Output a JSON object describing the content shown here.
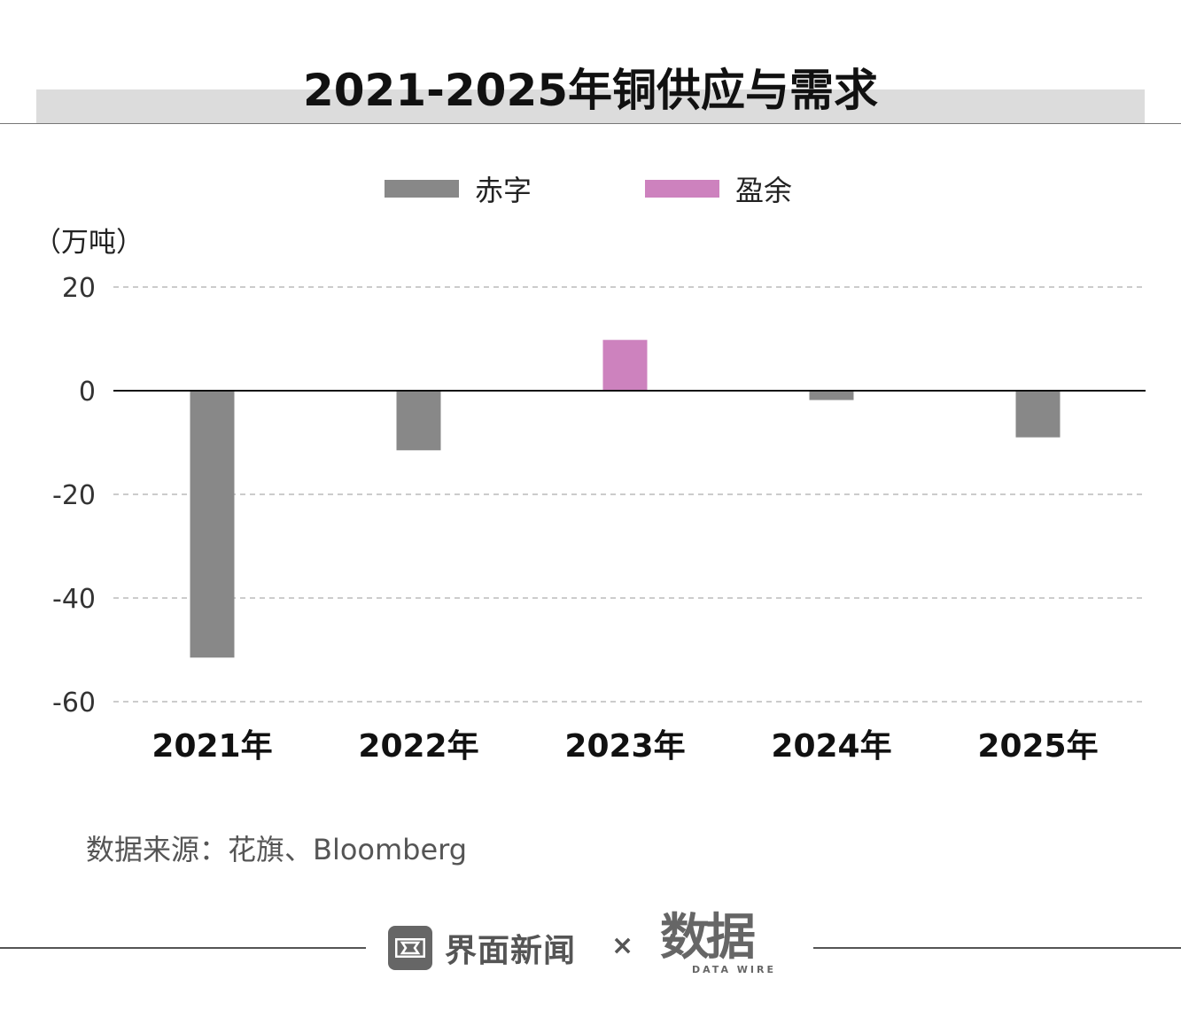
{
  "title": "2021-2025年铜供应与需求",
  "unit_label": "（万吨）",
  "legend": [
    {
      "label": "赤字",
      "color": "#888888"
    },
    {
      "label": "盈余",
      "color": "#cd82be"
    }
  ],
  "source": "数据来源：花旗、Bloomberg",
  "footer": {
    "brand": "界面新闻",
    "times": "×",
    "partner": "数据",
    "partner_sub": "DATA WIRE"
  },
  "chart_data": {
    "type": "bar",
    "categories": [
      "2021年",
      "2022年",
      "2023年",
      "2024年",
      "2025年"
    ],
    "values": [
      -51.5,
      -11.5,
      9.8,
      -1.8,
      -9.0
    ],
    "ylabel": "（万吨）",
    "ylim": [
      -60,
      20
    ],
    "yticks": [
      20,
      0,
      -20,
      -40,
      -60
    ],
    "grid": true,
    "legend_position": "top-center",
    "colors": {
      "deficit": "#888888",
      "surplus": "#cd82be"
    }
  }
}
